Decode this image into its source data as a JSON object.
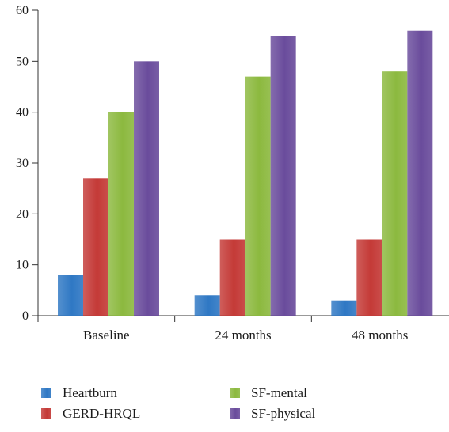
{
  "chart_data": {
    "type": "bar",
    "categories": [
      "Baseline",
      "24 months",
      "48 months"
    ],
    "series": [
      {
        "name": "Heartburn",
        "values": [
          8,
          4,
          3
        ],
        "color": "#2f78c4"
      },
      {
        "name": "GERD-HRQL",
        "values": [
          27,
          15,
          15
        ],
        "color": "#c43a37"
      },
      {
        "name": "SF-mental",
        "values": [
          40,
          47,
          48
        ],
        "color": "#8cb93f"
      },
      {
        "name": "SF-physical",
        "values": [
          50,
          55,
          56
        ],
        "color": "#6a4c9c"
      }
    ],
    "ylim": [
      0,
      60
    ],
    "yticks": [
      0,
      10,
      20,
      30,
      40,
      50,
      60
    ],
    "grid": false,
    "legend_position": "bottom"
  }
}
